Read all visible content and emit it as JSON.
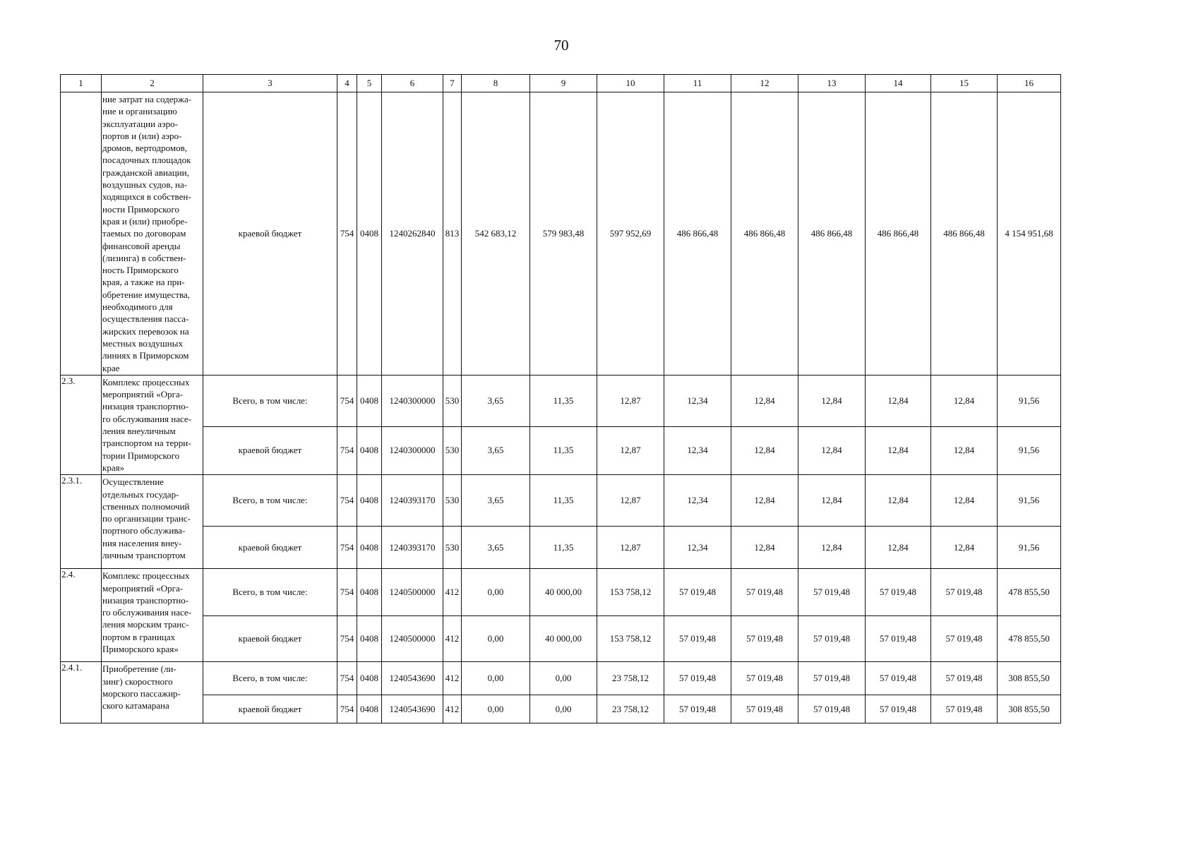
{
  "page_number": "70",
  "header": [
    "1",
    "2",
    "3",
    "4",
    "5",
    "6",
    "7",
    "8",
    "9",
    "10",
    "11",
    "12",
    "13",
    "14",
    "15",
    "16"
  ],
  "groups": [
    {
      "num": "",
      "desc": "ние затрат на содержа-\nние и организацию\nэксплуатации аэро-\nпортов и (или) аэро-\nдромов, вертодромов,\nпосадочных площадок\nгражданской авиации,\nвоздушных судов, на-\nходящихся в собствен-\nности Приморского\nкрая и (или) приобре-\nтаемых по договорам\nфинансовой аренды\n(лизинга) в собствен-\nность Приморского\nкрая, а также на при-\nобретение имущества,\nнеобходимого для\nосуществления пасса-\nжирских перевозок на\nместных воздушных\nлиниях в Приморском\nкрае",
      "rows": [
        [
          "краевой бюджет",
          "754",
          "0408",
          "1240262840",
          "813",
          "542 683,12",
          "579 983,48",
          "597 952,69",
          "486 866,48",
          "486 866,48",
          "486 866,48",
          "486 866,48",
          "486 866,48",
          "4 154 951,68"
        ]
      ]
    },
    {
      "num": "2.3.",
      "desc": "Комплекс процессных\nмероприятий «Орга-\nнизация транспортно-\nго обслуживания насе-\nления внеуличным\nтранспортом на терри-\nтории Приморского\nкрая»",
      "rows": [
        [
          "Всего, в том числе:",
          "754",
          "0408",
          "1240300000",
          "530",
          "3,65",
          "11,35",
          "12,87",
          "12,34",
          "12,84",
          "12,84",
          "12,84",
          "12,84",
          "91,56"
        ],
        [
          "краевой бюджет",
          "754",
          "0408",
          "1240300000",
          "530",
          "3,65",
          "11,35",
          "12,87",
          "12,34",
          "12,84",
          "12,84",
          "12,84",
          "12,84",
          "91,56"
        ]
      ]
    },
    {
      "num": "2.3.1.",
      "desc": "Осуществление\nотдельных государ-\nственных полномочий\nпо организации транс-\nпортного обслужива-\nния населения внеу-\nличным транспортом",
      "rows": [
        [
          "Всего, в том числе:",
          "754",
          "0408",
          "1240393170",
          "530",
          "3,65",
          "11,35",
          "12,87",
          "12,34",
          "12,84",
          "12,84",
          "12,84",
          "12,84",
          "91,56"
        ],
        [
          "краевой бюджет",
          "754",
          "0408",
          "1240393170",
          "530",
          "3,65",
          "11,35",
          "12,87",
          "12,34",
          "12,84",
          "12,84",
          "12,84",
          "12,84",
          "91,56"
        ]
      ]
    },
    {
      "num": "2.4.",
      "desc": "Комплекс процессных\nмероприятий «Орга-\nнизация транспортно-\nго обслуживания насе-\nления морским транс-\nпортом в границах\nПриморского края»",
      "rows": [
        [
          "Всего, в том числе:",
          "754",
          "0408",
          "1240500000",
          "412",
          "0,00",
          "40 000,00",
          "153 758,12",
          "57 019,48",
          "57 019,48",
          "57 019,48",
          "57 019,48",
          "57 019,48",
          "478 855,50"
        ],
        [
          "краевой бюджет",
          "754",
          "0408",
          "1240500000",
          "412",
          "0,00",
          "40 000,00",
          "153 758,12",
          "57 019,48",
          "57 019,48",
          "57 019,48",
          "57 019,48",
          "57 019,48",
          "478 855,50"
        ]
      ]
    },
    {
      "num": "2.4.1.",
      "desc": "Приобретение (ли-\nзинг) скоростного\nморского пассажир-\nского катамарана",
      "rows": [
        [
          "Всего, в том числе:",
          "754",
          "0408",
          "1240543690",
          "412",
          "0,00",
          "0,00",
          "23 758,12",
          "57 019,48",
          "57 019,48",
          "57 019,48",
          "57 019,48",
          "57 019,48",
          "308 855,50"
        ],
        [
          "краевой бюджет",
          "754",
          "0408",
          "1240543690",
          "412",
          "0,00",
          "0,00",
          "23 758,12",
          "57 019,48",
          "57 019,48",
          "57 019,48",
          "57 019,48",
          "57 019,48",
          "308 855,50"
        ]
      ]
    }
  ]
}
